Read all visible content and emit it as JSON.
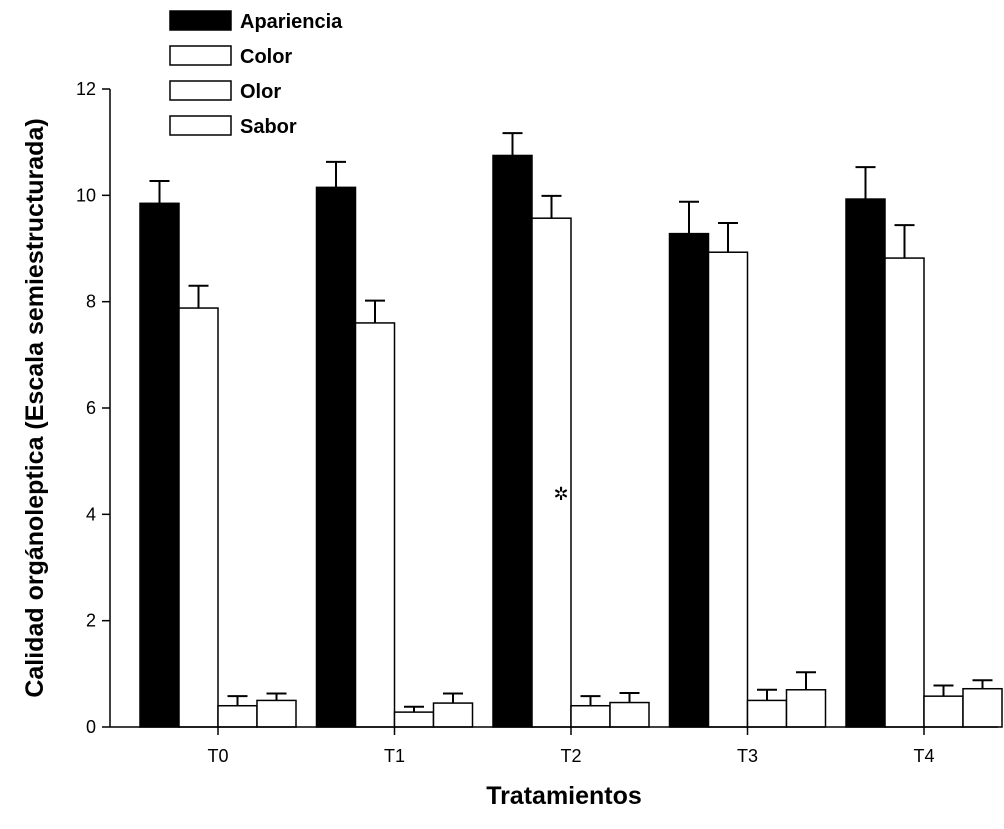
{
  "chart_data": {
    "type": "bar",
    "xlabel": "Tratamientos",
    "ylabel": "Calidad orgánoleptica (Escala semiestructurada)",
    "ylim": [
      0,
      12
    ],
    "yticks": [
      "0",
      "2",
      "4",
      "6",
      "8",
      "10",
      "12"
    ],
    "grid": false,
    "legend_position": "top-left",
    "categories": [
      "T0",
      "T1",
      "T2",
      "T3",
      "T4"
    ],
    "series": [
      {
        "name": "Apariencia",
        "fill": "#000000",
        "values": [
          9.85,
          10.15,
          10.75,
          9.28,
          9.93
        ],
        "errors": [
          0.42,
          0.48,
          0.42,
          0.6,
          0.6
        ]
      },
      {
        "name": "Color",
        "fill": "#ffffff",
        "values": [
          7.88,
          7.6,
          9.57,
          8.93,
          8.82
        ],
        "errors": [
          0.42,
          0.42,
          0.42,
          0.55,
          0.62
        ]
      },
      {
        "name": "Olor",
        "fill": "#ffffff",
        "values": [
          0.4,
          0.28,
          0.4,
          0.5,
          0.58
        ],
        "errors": [
          0.18,
          0.1,
          0.18,
          0.2,
          0.2
        ]
      },
      {
        "name": "Sabor",
        "fill": "#ffffff",
        "values": [
          0.5,
          0.45,
          0.46,
          0.7,
          0.72
        ],
        "errors": [
          0.13,
          0.18,
          0.18,
          0.33,
          0.16
        ]
      }
    ],
    "annotations": [
      {
        "text": "✲",
        "category": "T2",
        "y": 4.4
      }
    ]
  }
}
